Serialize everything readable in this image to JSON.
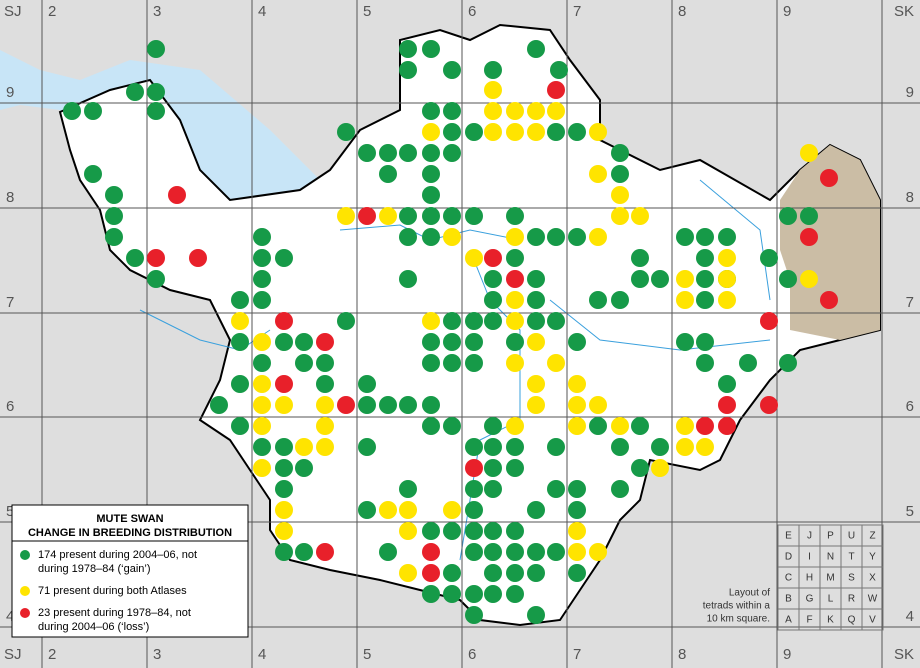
{
  "grid": {
    "columns": [
      "2",
      "3",
      "4",
      "5",
      "6",
      "7",
      "8",
      "9"
    ],
    "rows": [
      "9",
      "8",
      "7",
      "6",
      "5",
      "4"
    ],
    "corners": {
      "top_left": "SJ",
      "top_right": "SK",
      "bottom_left": "SJ",
      "bottom_right": "SK"
    }
  },
  "legend": {
    "title_lines": [
      "MUTE SWAN",
      "CHANGE IN BREEDING DISTRIBUTION"
    ],
    "items": [
      {
        "label_lines": [
          "174 present during 2004–06, not",
          "during 1978–84 (‘gain’)"
        ],
        "color": "#169a48"
      },
      {
        "label_lines": [
          "71 present during both Atlases"
        ],
        "color": "#ffe400"
      },
      {
        "label_lines": [
          "23 present during 1978–84, not",
          "during 2004–06 (‘loss’)"
        ],
        "color": "#e8202a"
      }
    ]
  },
  "tetrad_key": {
    "caption_lines": [
      "Layout of",
      "tetrads within a",
      "10 km square."
    ],
    "rows": [
      [
        "E",
        "J",
        "P",
        "U",
        "Z"
      ],
      [
        "D",
        "I",
        "N",
        "T",
        "Y"
      ],
      [
        "C",
        "H",
        "M",
        "S",
        "X"
      ],
      [
        "B",
        "G",
        "L",
        "R",
        "W"
      ],
      [
        "A",
        "F",
        "K",
        "Q",
        "V"
      ]
    ]
  }
}
